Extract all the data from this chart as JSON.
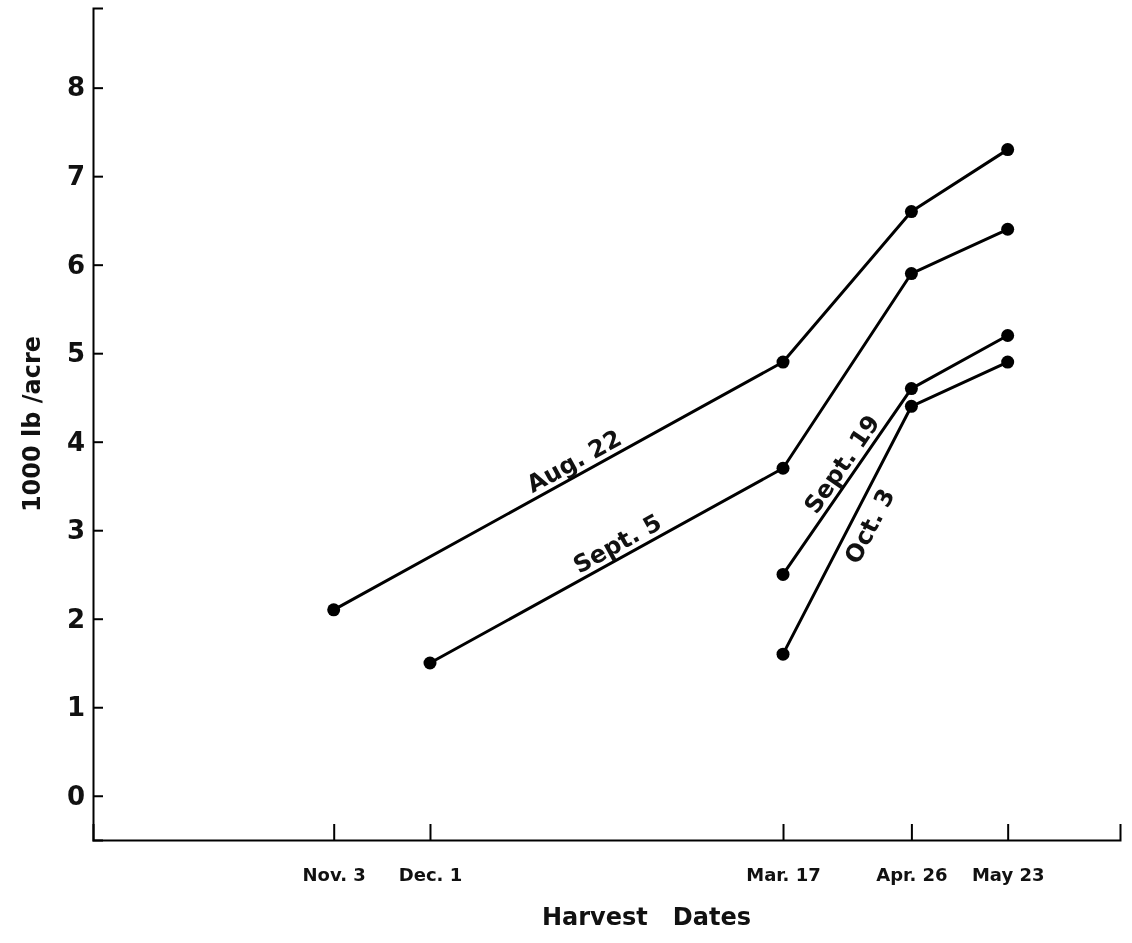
{
  "chart_data": {
    "type": "line",
    "xlabel": "Harvest   Dates",
    "ylabel": "1000 lb /acre",
    "categories": [
      null,
      null,
      null,
      null,
      null,
      null,
      null,
      "Nov. 3",
      null,
      null,
      "Dec. 1",
      null,
      null,
      null,
      null,
      null,
      null,
      null,
      null,
      null,
      null,
      "Mar. 17",
      null,
      null,
      null,
      "Apr. 26",
      null,
      null,
      "May 23",
      null,
      null,
      null
    ],
    "ylim": [
      -0.5,
      8.9
    ],
    "yticks": [
      0,
      1,
      2,
      3,
      4,
      5,
      6,
      7,
      8
    ],
    "marker": "circle",
    "line_style": "solid",
    "series": [
      {
        "name": "Aug. 22",
        "color": "#000000",
        "values": [
          null,
          null,
          null,
          null,
          null,
          null,
          null,
          2.1,
          null,
          null,
          null,
          null,
          null,
          null,
          null,
          null,
          null,
          null,
          null,
          null,
          null,
          4.9,
          null,
          null,
          null,
          6.6,
          null,
          null,
          7.3,
          null,
          null,
          null
        ]
      },
      {
        "name": "Sept. 5",
        "color": "#000000",
        "values": [
          null,
          null,
          null,
          null,
          null,
          null,
          null,
          null,
          null,
          null,
          1.5,
          null,
          null,
          null,
          null,
          null,
          null,
          null,
          null,
          null,
          null,
          3.7,
          null,
          null,
          null,
          5.9,
          null,
          null,
          6.4,
          null,
          null,
          null
        ]
      },
      {
        "name": "Sept. 19",
        "color": "#000000",
        "values": [
          null,
          null,
          null,
          null,
          null,
          null,
          null,
          null,
          null,
          null,
          null,
          null,
          null,
          null,
          null,
          null,
          null,
          null,
          null,
          null,
          null,
          2.5,
          null,
          null,
          null,
          4.6,
          null,
          null,
          5.2,
          null,
          null,
          null
        ]
      },
      {
        "name": "Oct. 3",
        "color": "#000000",
        "values": [
          null,
          null,
          null,
          null,
          null,
          null,
          null,
          null,
          null,
          null,
          null,
          null,
          null,
          null,
          null,
          null,
          null,
          null,
          null,
          null,
          null,
          1.6,
          null,
          null,
          null,
          4.4,
          null,
          null,
          4.9,
          null,
          null,
          null
        ]
      }
    ]
  }
}
